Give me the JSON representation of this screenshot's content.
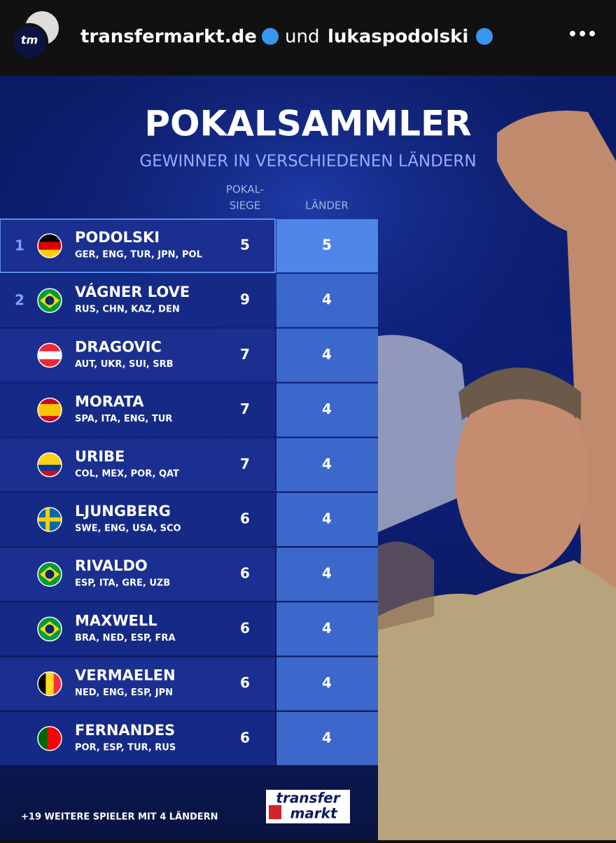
{
  "header": {
    "account_1": "transfermarkt.de",
    "connector": "und",
    "account_2": "lukaspodolski",
    "avatar_text": "tm",
    "menu": "•••"
  },
  "graphic": {
    "title": "POKALSAMMLER",
    "subtitle": "GEWINNER IN VERSCHIEDENEN LÄNDERN",
    "columns": {
      "cups": [
        "POKAL-",
        "SIEGE"
      ],
      "countries": "LÄNDER"
    },
    "table": {
      "rows": [
        {
          "rank": "1",
          "name": "PODOLSKI",
          "leagues": "GER, ENG, TUR, JPN, POL",
          "cups": "5",
          "countries": "5"
        },
        {
          "rank": "2",
          "name": "VÁGNER LOVE",
          "leagues": "RUS, CHN, KAZ, DEN",
          "cups": "9",
          "countries": "4"
        },
        {
          "name": "DRAGOVIC",
          "leagues": "AUT, UKR, SUI, SRB",
          "cups": "7",
          "countries": "4"
        },
        {
          "name": "MORATA",
          "leagues": "SPA, ITA, ENG, TUR",
          "cups": "7",
          "countries": "4"
        },
        {
          "name": "URIBE",
          "leagues": "COL, MEX, POR, QAT",
          "cups": "7",
          "countries": "4"
        },
        {
          "name": "LJUNGBERG",
          "leagues": "SWE, ENG, USA, SCO",
          "cups": "6",
          "countries": "4"
        },
        {
          "name": "RIVALDO",
          "leagues": "ESP, ITA, GRE, UZB",
          "cups": "6",
          "countries": "4"
        },
        {
          "name": "MAXWELL",
          "leagues": "BRA, NED, ESP, FRA",
          "cups": "6",
          "countries": "4"
        },
        {
          "name": "VERMAELEN",
          "leagues": "NED, ENG, ESP, JPN",
          "cups": "6",
          "countries": "4"
        },
        {
          "name": "FERNANDES",
          "leagues": "POR, ESP, TUR, RUS",
          "cups": "6",
          "countries": "4"
        }
      ]
    },
    "footer": "+19 WEITERE SPIELER MIT 4 LÄNDERN",
    "logo": [
      "transfer",
      "markt"
    ]
  }
}
